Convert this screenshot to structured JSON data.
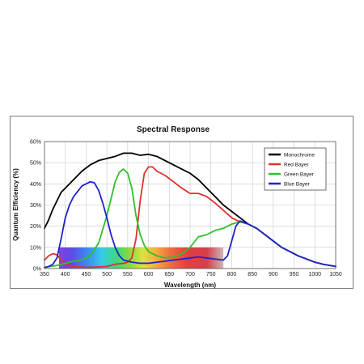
{
  "chart_data": {
    "type": "line",
    "title": "Spectral Response",
    "xlabel": "Wavelength (nm)",
    "ylabel": "Quantum Efficiency (%)",
    "xlim": [
      350,
      1050
    ],
    "ylim": [
      0,
      60
    ],
    "x_ticks": [
      350,
      400,
      450,
      500,
      550,
      600,
      650,
      700,
      750,
      800,
      850,
      900,
      950,
      1000,
      1050
    ],
    "y_ticks": [
      0,
      10,
      20,
      30,
      40,
      50,
      60
    ],
    "y_tick_labels": [
      "0%",
      "10%",
      "20%",
      "30%",
      "40%",
      "50%",
      "60%"
    ],
    "grid": true,
    "legend_position": "top-right",
    "color_band": {
      "from": 385,
      "to": 780,
      "y_low": 0,
      "y_high": 10
    },
    "series": [
      {
        "name": "Monochrome",
        "color": "#000000",
        "points": [
          [
            350,
            19
          ],
          [
            360,
            23
          ],
          [
            370,
            28
          ],
          [
            380,
            32
          ],
          [
            390,
            36
          ],
          [
            400,
            38
          ],
          [
            420,
            42
          ],
          [
            440,
            46
          ],
          [
            460,
            49
          ],
          [
            480,
            51
          ],
          [
            500,
            52
          ],
          [
            520,
            53
          ],
          [
            540,
            54.5
          ],
          [
            560,
            54.5
          ],
          [
            580,
            53.5
          ],
          [
            600,
            54
          ],
          [
            620,
            53
          ],
          [
            640,
            51
          ],
          [
            660,
            49
          ],
          [
            680,
            47
          ],
          [
            700,
            45
          ],
          [
            720,
            42
          ],
          [
            740,
            38
          ],
          [
            760,
            34
          ],
          [
            780,
            30
          ],
          [
            800,
            27
          ],
          [
            820,
            24
          ],
          [
            840,
            21
          ],
          [
            860,
            19
          ],
          [
            880,
            16
          ],
          [
            900,
            13
          ],
          [
            920,
            10
          ],
          [
            940,
            8
          ],
          [
            960,
            6
          ],
          [
            980,
            4.5
          ],
          [
            1000,
            3
          ],
          [
            1020,
            2
          ],
          [
            1050,
            1
          ]
        ]
      },
      {
        "name": "Red Bayer",
        "color": "#e03030",
        "points": [
          [
            350,
            4
          ],
          [
            360,
            6
          ],
          [
            370,
            7
          ],
          [
            380,
            6.5
          ],
          [
            390,
            4
          ],
          [
            400,
            2
          ],
          [
            420,
            1
          ],
          [
            450,
            0.5
          ],
          [
            500,
            1
          ],
          [
            520,
            2
          ],
          [
            540,
            2.5
          ],
          [
            550,
            3
          ],
          [
            560,
            5
          ],
          [
            570,
            14
          ],
          [
            580,
            32
          ],
          [
            590,
            45
          ],
          [
            600,
            48
          ],
          [
            610,
            48
          ],
          [
            620,
            46
          ],
          [
            640,
            44
          ],
          [
            660,
            41
          ],
          [
            680,
            38
          ],
          [
            700,
            35.5
          ],
          [
            720,
            35.5
          ],
          [
            740,
            34
          ],
          [
            760,
            31
          ],
          [
            780,
            27.5
          ],
          [
            800,
            24
          ],
          [
            820,
            22
          ],
          [
            840,
            21
          ],
          [
            860,
            19
          ],
          [
            880,
            16
          ],
          [
            900,
            13
          ],
          [
            920,
            10
          ],
          [
            940,
            8
          ],
          [
            960,
            6
          ],
          [
            980,
            4.5
          ],
          [
            1000,
            3
          ],
          [
            1020,
            2
          ],
          [
            1050,
            1
          ]
        ]
      },
      {
        "name": "Green Bayer",
        "color": "#2fc02f",
        "points": [
          [
            350,
            0.5
          ],
          [
            380,
            1.5
          ],
          [
            400,
            2.5
          ],
          [
            420,
            3.5
          ],
          [
            440,
            4
          ],
          [
            460,
            6
          ],
          [
            480,
            12
          ],
          [
            500,
            25
          ],
          [
            510,
            33
          ],
          [
            520,
            41
          ],
          [
            530,
            45.5
          ],
          [
            540,
            47
          ],
          [
            550,
            45
          ],
          [
            560,
            38
          ],
          [
            570,
            25
          ],
          [
            580,
            16
          ],
          [
            590,
            11
          ],
          [
            600,
            8
          ],
          [
            620,
            6
          ],
          [
            640,
            5
          ],
          [
            660,
            5.5
          ],
          [
            680,
            7
          ],
          [
            700,
            10
          ],
          [
            720,
            15
          ],
          [
            740,
            16
          ],
          [
            760,
            18
          ],
          [
            780,
            19
          ],
          [
            800,
            21
          ],
          [
            820,
            22
          ],
          [
            840,
            21
          ],
          [
            860,
            19
          ],
          [
            880,
            16
          ],
          [
            900,
            13
          ],
          [
            920,
            10
          ],
          [
            940,
            8
          ],
          [
            960,
            6
          ],
          [
            980,
            4.5
          ],
          [
            1000,
            3
          ],
          [
            1020,
            2
          ],
          [
            1050,
            1
          ]
        ]
      },
      {
        "name": "Blue Bayer",
        "color": "#2222c8",
        "points": [
          [
            350,
            0.5
          ],
          [
            360,
            1
          ],
          [
            370,
            2
          ],
          [
            380,
            5
          ],
          [
            390,
            14
          ],
          [
            400,
            24
          ],
          [
            410,
            30
          ],
          [
            420,
            34
          ],
          [
            440,
            39
          ],
          [
            460,
            41
          ],
          [
            470,
            40.5
          ],
          [
            480,
            37
          ],
          [
            490,
            31
          ],
          [
            500,
            24
          ],
          [
            510,
            16
          ],
          [
            520,
            10
          ],
          [
            530,
            6
          ],
          [
            540,
            4
          ],
          [
            560,
            3
          ],
          [
            580,
            2.5
          ],
          [
            600,
            2.5
          ],
          [
            620,
            3
          ],
          [
            640,
            3.5
          ],
          [
            660,
            4
          ],
          [
            680,
            4.5
          ],
          [
            700,
            5
          ],
          [
            720,
            5.5
          ],
          [
            740,
            5
          ],
          [
            760,
            4.5
          ],
          [
            780,
            4
          ],
          [
            790,
            6
          ],
          [
            800,
            13
          ],
          [
            810,
            20
          ],
          [
            820,
            22.5
          ],
          [
            840,
            21
          ],
          [
            860,
            19
          ],
          [
            880,
            16
          ],
          [
            900,
            13
          ],
          [
            920,
            10
          ],
          [
            940,
            8
          ],
          [
            960,
            6
          ],
          [
            980,
            4.5
          ],
          [
            1000,
            3
          ],
          [
            1020,
            2
          ],
          [
            1050,
            1
          ]
        ]
      }
    ]
  }
}
